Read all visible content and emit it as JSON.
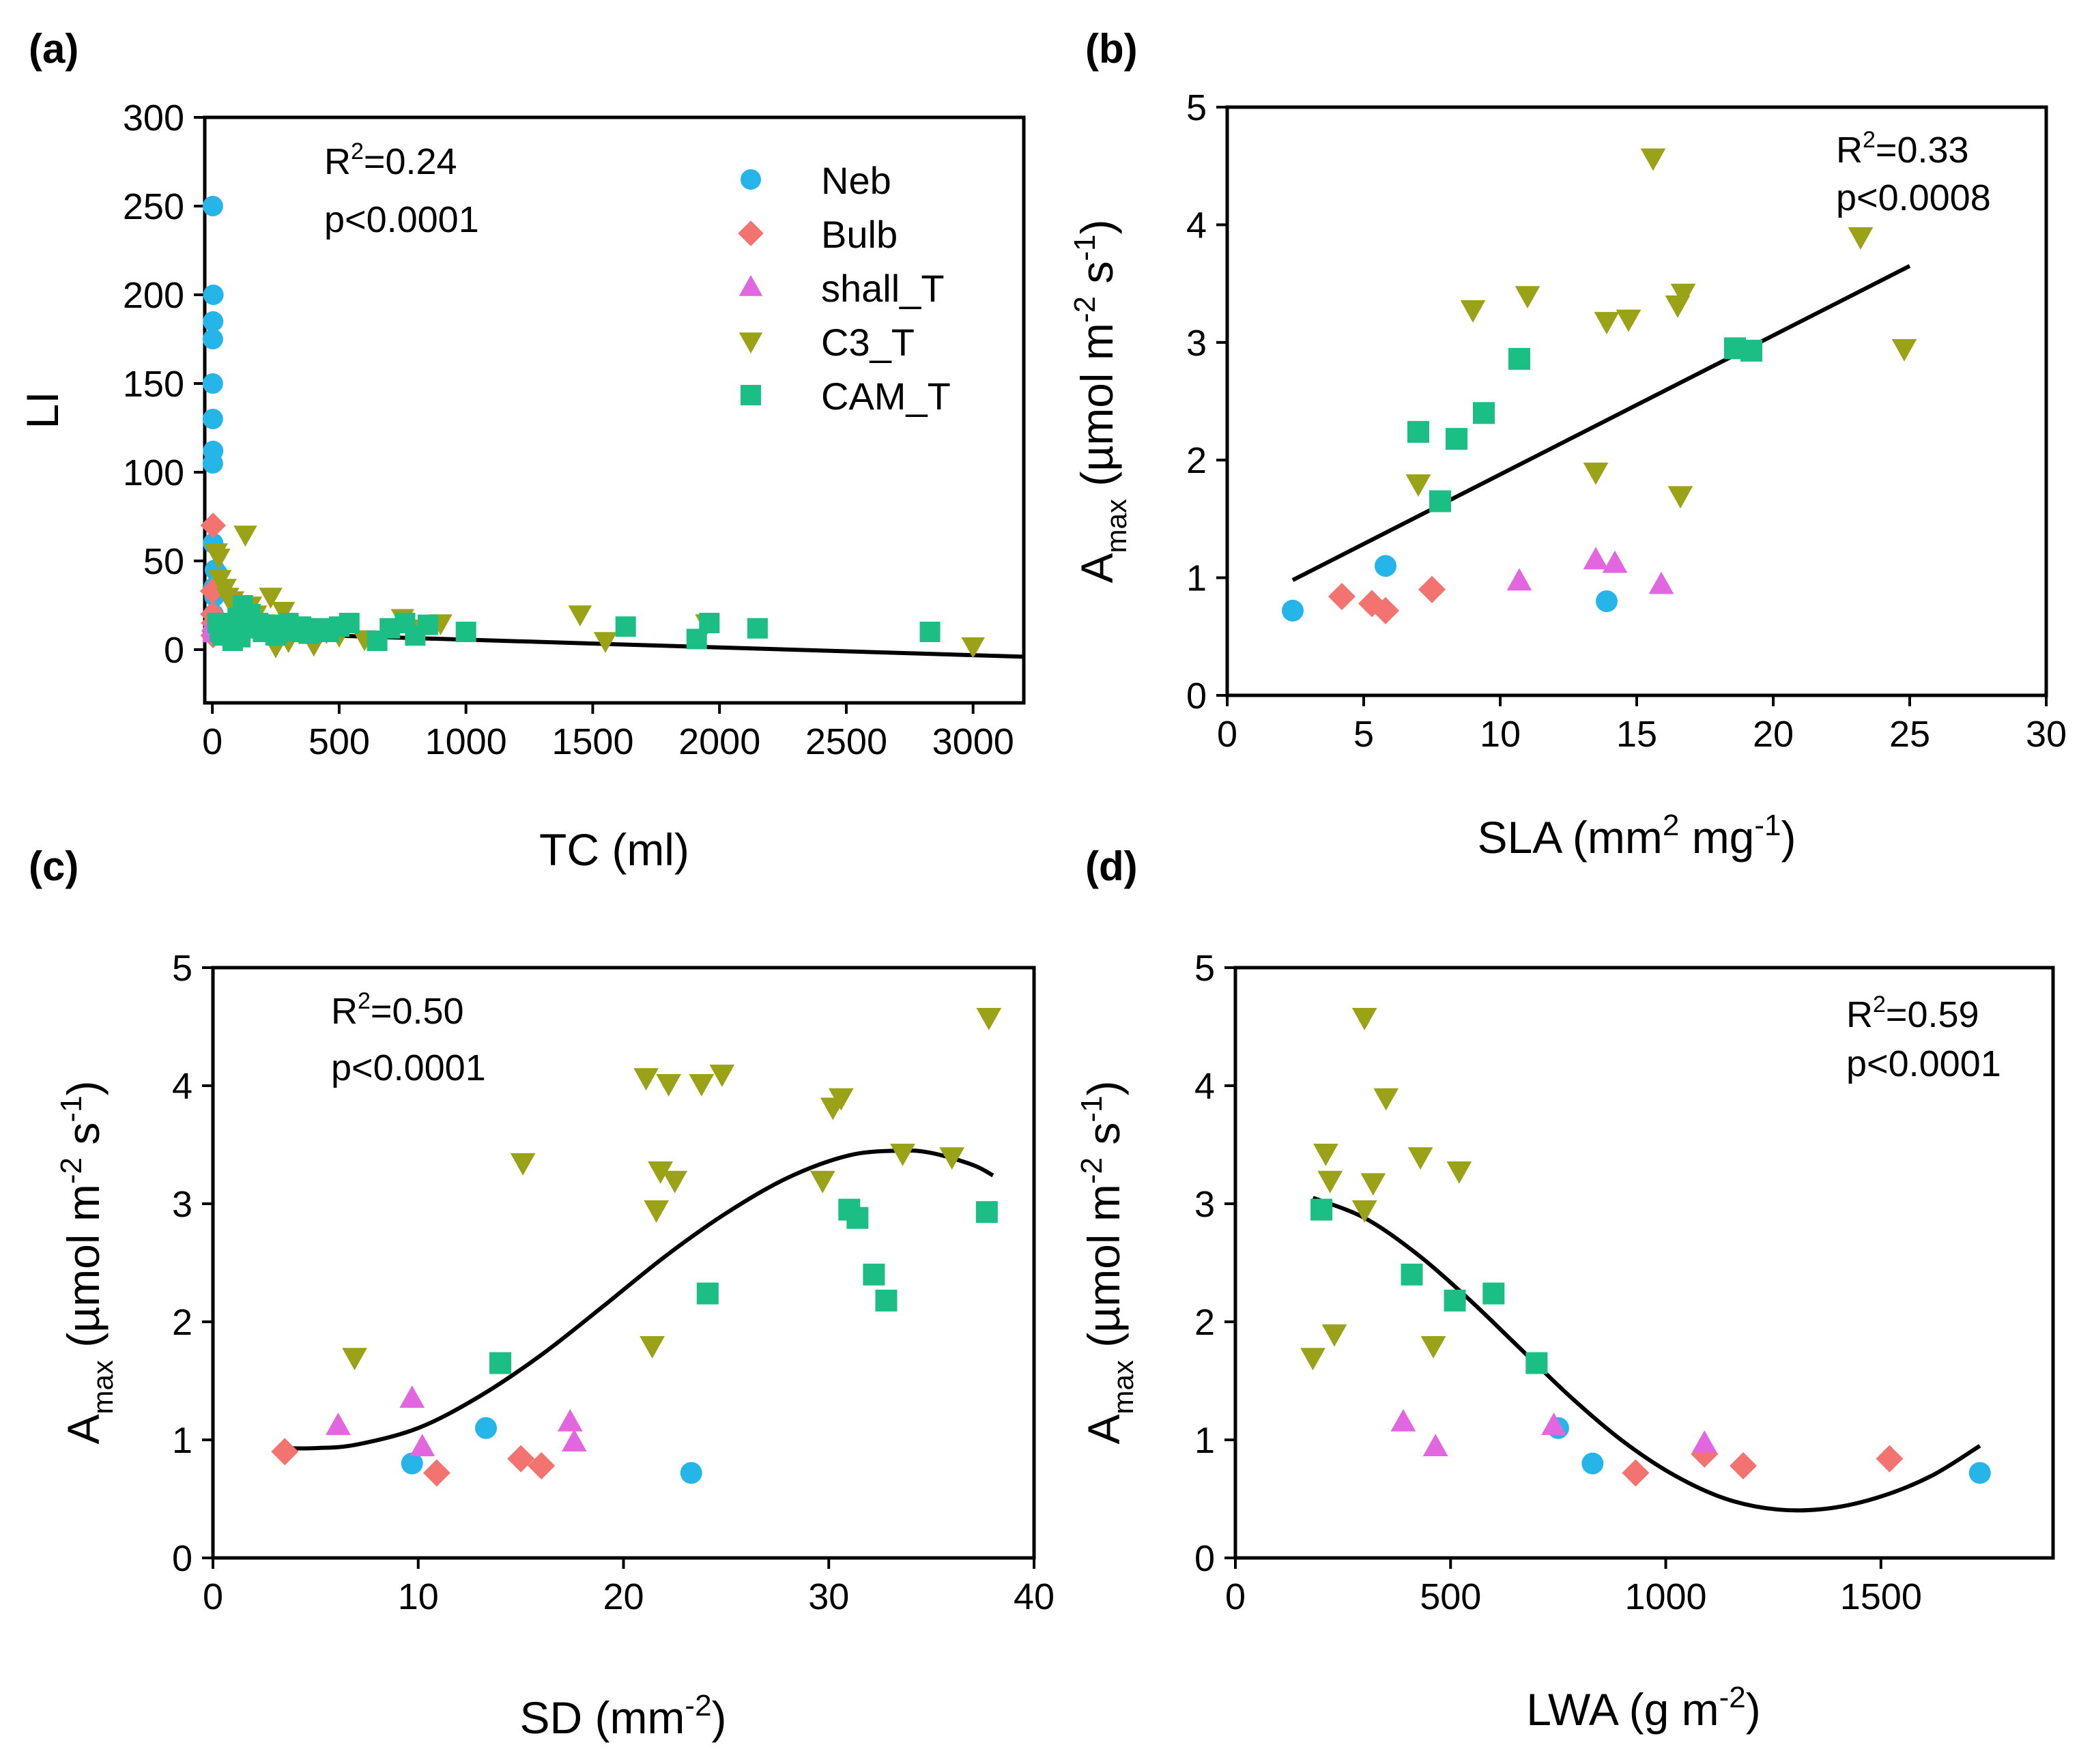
{
  "chart_data": [
    {
      "panel": "(a)",
      "type": "scatter",
      "xlabel": "TC (ml)",
      "ylabel": "LI",
      "xlim": [
        -30,
        3200
      ],
      "ylim": [
        -30,
        300
      ],
      "xticks": [
        0,
        500,
        1000,
        1500,
        2000,
        2500,
        3000
      ],
      "yticks": [
        0,
        50,
        100,
        150,
        200,
        250,
        300
      ],
      "stats": [
        "R2=0.24",
        "p<0.0001"
      ],
      "legend": [
        "Neb",
        "Bulb",
        "shall_T",
        "C3_T",
        "CAM_T"
      ],
      "fit": {
        "kind": "linear",
        "x": [
          0,
          3200
        ],
        "y": [
          10,
          -4
        ]
      },
      "series": [
        {
          "name": "Neb",
          "points": [
            [
              2,
              250
            ],
            [
              4,
              200
            ],
            [
              3,
              185
            ],
            [
              2,
              175
            ],
            [
              2,
              150
            ],
            [
              2,
              130
            ],
            [
              3,
              112
            ],
            [
              2,
              105
            ],
            [
              3,
              60
            ],
            [
              10,
              45
            ],
            [
              20,
              43
            ],
            [
              5,
              35
            ],
            [
              8,
              30
            ],
            [
              5,
              20
            ]
          ]
        },
        {
          "name": "Bulb",
          "points": [
            [
              3,
              70
            ],
            [
              1,
              33
            ],
            [
              2,
              20
            ],
            [
              5,
              15
            ],
            [
              3,
              8
            ]
          ]
        },
        {
          "name": "shall_T",
          "points": [
            [
              3,
              12
            ],
            [
              6,
              9
            ],
            [
              2,
              15
            ],
            [
              8,
              10
            ]
          ]
        },
        {
          "name": "C3_T",
          "points": [
            [
              15,
              55
            ],
            [
              25,
              52
            ],
            [
              30,
              40
            ],
            [
              50,
              35
            ],
            [
              60,
              30
            ],
            [
              80,
              28
            ],
            [
              100,
              22
            ],
            [
              120,
              18
            ],
            [
              130,
              65
            ],
            [
              150,
              25
            ],
            [
              170,
              20
            ],
            [
              200,
              15
            ],
            [
              230,
              30
            ],
            [
              250,
              2
            ],
            [
              280,
              22
            ],
            [
              300,
              5
            ],
            [
              350,
              12
            ],
            [
              400,
              3
            ],
            [
              450,
              10
            ],
            [
              500,
              8
            ],
            [
              600,
              6
            ],
            [
              750,
              18
            ],
            [
              820,
              12
            ],
            [
              900,
              15
            ],
            [
              1450,
              20
            ],
            [
              1550,
              5
            ],
            [
              1950,
              15
            ],
            [
              3000,
              2
            ]
          ]
        },
        {
          "name": "CAM_T",
          "points": [
            [
              20,
              15
            ],
            [
              30,
              10
            ],
            [
              40,
              8
            ],
            [
              60,
              12
            ],
            [
              80,
              5
            ],
            [
              100,
              18
            ],
            [
              110,
              7
            ],
            [
              120,
              25
            ],
            [
              140,
              12
            ],
            [
              150,
              20
            ],
            [
              180,
              15
            ],
            [
              200,
              10
            ],
            [
              220,
              14
            ],
            [
              250,
              8
            ],
            [
              280,
              12
            ],
            [
              300,
              15
            ],
            [
              320,
              10
            ],
            [
              350,
              13
            ],
            [
              380,
              9
            ],
            [
              420,
              12
            ],
            [
              460,
              10
            ],
            [
              500,
              13
            ],
            [
              540,
              15
            ],
            [
              650,
              5
            ],
            [
              700,
              12
            ],
            [
              760,
              15
            ],
            [
              800,
              8
            ],
            [
              850,
              14
            ],
            [
              1000,
              10
            ],
            [
              1630,
              13
            ],
            [
              1910,
              6
            ],
            [
              1960,
              15
            ],
            [
              2150,
              12
            ],
            [
              2830,
              10
            ]
          ]
        }
      ]
    },
    {
      "panel": "(b)",
      "type": "scatter",
      "xlabel": "SLA (mm2 mg-1)",
      "ylabel": "Amax (µmol m-2 s-1)",
      "xlim": [
        0,
        30
      ],
      "ylim": [
        0,
        5
      ],
      "xticks": [
        0,
        5,
        10,
        15,
        20,
        25,
        30
      ],
      "yticks": [
        0,
        1,
        2,
        3,
        4,
        5
      ],
      "stats": [
        "R2=0.33",
        "p<0.0008"
      ],
      "fit": {
        "kind": "linear",
        "x": [
          2.4,
          25.0
        ],
        "y": [
          0.98,
          3.65
        ]
      },
      "series": [
        {
          "name": "Neb",
          "points": [
            [
              2.4,
              0.72
            ],
            [
              5.8,
              1.1
            ],
            [
              13.9,
              0.8
            ]
          ]
        },
        {
          "name": "Bulb",
          "points": [
            [
              4.2,
              0.84
            ],
            [
              5.3,
              0.78
            ],
            [
              5.8,
              0.72
            ],
            [
              7.5,
              0.9
            ]
          ]
        },
        {
          "name": "shall_T",
          "points": [
            [
              10.7,
              0.97
            ],
            [
              13.5,
              1.15
            ],
            [
              14.2,
              1.12
            ],
            [
              15.9,
              0.94
            ]
          ]
        },
        {
          "name": "C3_T",
          "points": [
            [
              7.0,
              1.8
            ],
            [
              9.0,
              3.28
            ],
            [
              11.0,
              3.4
            ],
            [
              13.5,
              1.9
            ],
            [
              13.9,
              3.18
            ],
            [
              14.7,
              3.2
            ],
            [
              15.6,
              4.57
            ],
            [
              16.5,
              3.32
            ],
            [
              16.7,
              3.42
            ],
            [
              16.6,
              1.7
            ],
            [
              23.2,
              3.9
            ],
            [
              24.8,
              2.95
            ]
          ]
        },
        {
          "name": "CAM_T",
          "points": [
            [
              7.0,
              2.24
            ],
            [
              7.8,
              1.65
            ],
            [
              8.4,
              2.18
            ],
            [
              9.4,
              2.4
            ],
            [
              10.7,
              2.86
            ],
            [
              18.6,
              2.95
            ],
            [
              19.2,
              2.93
            ]
          ]
        }
      ]
    },
    {
      "panel": "(c)",
      "type": "scatter",
      "xlabel": "SD (mm-2)",
      "ylabel": "Amax (µmol m-2 s-1)",
      "xlim": [
        0,
        40
      ],
      "ylim": [
        0,
        5
      ],
      "xticks": [
        0,
        10,
        20,
        30,
        40
      ],
      "yticks": [
        0,
        1,
        2,
        3,
        4,
        5
      ],
      "stats": [
        "R2=0.50",
        "p<0.0001"
      ],
      "fit": {
        "kind": "curve",
        "x": [
          3.5,
          5,
          7,
          10,
          13,
          16,
          19,
          22,
          25,
          28,
          31,
          33.5,
          35,
          37,
          38
        ],
        "y": [
          0.93,
          0.93,
          0.96,
          1.1,
          1.37,
          1.72,
          2.13,
          2.55,
          2.92,
          3.22,
          3.41,
          3.45,
          3.43,
          3.33,
          3.24
        ]
      },
      "series": [
        {
          "name": "Neb",
          "points": [
            [
              9.7,
              0.8
            ],
            [
              13.3,
              1.1
            ],
            [
              23.3,
              0.72
            ]
          ]
        },
        {
          "name": "Bulb",
          "points": [
            [
              3.5,
              0.9
            ],
            [
              10.9,
              0.72
            ],
            [
              15.0,
              0.84
            ],
            [
              16.0,
              0.78
            ]
          ]
        },
        {
          "name": "shall_T",
          "points": [
            [
              6.1,
              1.12
            ],
            [
              9.7,
              1.35
            ],
            [
              10.2,
              0.94
            ],
            [
              17.4,
              1.15
            ],
            [
              17.6,
              0.98
            ]
          ]
        },
        {
          "name": "C3_T",
          "points": [
            [
              6.9,
              1.7
            ],
            [
              15.1,
              3.35
            ],
            [
              21.1,
              4.07
            ],
            [
              21.4,
              1.8
            ],
            [
              21.6,
              2.95
            ],
            [
              21.8,
              3.28
            ],
            [
              22.2,
              4.02
            ],
            [
              22.5,
              3.2
            ],
            [
              23.8,
              4.02
            ],
            [
              24.8,
              4.1
            ],
            [
              29.7,
              3.2
            ],
            [
              30.2,
              3.82
            ],
            [
              30.6,
              3.9
            ],
            [
              33.6,
              3.43
            ],
            [
              36.0,
              3.4
            ],
            [
              37.8,
              4.58
            ]
          ]
        },
        {
          "name": "CAM_T",
          "points": [
            [
              14.0,
              1.65
            ],
            [
              24.1,
              2.24
            ],
            [
              31.0,
              2.95
            ],
            [
              31.4,
              2.88
            ],
            [
              32.2,
              2.4
            ],
            [
              32.8,
              2.18
            ],
            [
              37.7,
              2.93
            ]
          ]
        }
      ]
    },
    {
      "panel": "(d)",
      "type": "scatter",
      "xlabel": "LWA (g m-2)",
      "ylabel": "Amax (µmol m-2 s-1)",
      "xlim": [
        0,
        1900
      ],
      "ylim": [
        0,
        5
      ],
      "xticks": [
        0,
        500,
        1000,
        1500
      ],
      "yticks": [
        0,
        1,
        2,
        3,
        4,
        5
      ],
      "stats": [
        "R2=0.59",
        "p<0.0001"
      ],
      "fit": {
        "kind": "curve",
        "x": [
          180,
          300,
          420,
          540,
          660,
          780,
          900,
          1020,
          1140,
          1260,
          1380,
          1500,
          1620,
          1730
        ],
        "y": [
          3.05,
          2.88,
          2.58,
          2.2,
          1.78,
          1.36,
          0.99,
          0.7,
          0.5,
          0.41,
          0.42,
          0.52,
          0.7,
          0.95
        ]
      },
      "series": [
        {
          "name": "Neb",
          "points": [
            [
              750,
              1.1
            ],
            [
              830,
              0.8
            ],
            [
              1730,
              0.72
            ]
          ]
        },
        {
          "name": "Bulb",
          "points": [
            [
              930,
              0.72
            ],
            [
              1090,
              0.88
            ],
            [
              1180,
              0.78
            ],
            [
              1520,
              0.84
            ]
          ]
        },
        {
          "name": "shall_T",
          "points": [
            [
              390,
              1.15
            ],
            [
              465,
              0.94
            ],
            [
              740,
              1.12
            ],
            [
              1090,
              0.97
            ]
          ]
        },
        {
          "name": "C3_T",
          "points": [
            [
              180,
              1.7
            ],
            [
              210,
              3.43
            ],
            [
              220,
              3.2
            ],
            [
              230,
              1.9
            ],
            [
              300,
              4.58
            ],
            [
              300,
              2.95
            ],
            [
              320,
              3.18
            ],
            [
              350,
              3.9
            ],
            [
              430,
              3.4
            ],
            [
              460,
              1.8
            ],
            [
              520,
              3.28
            ]
          ]
        },
        {
          "name": "CAM_T",
          "points": [
            [
              200,
              2.95
            ],
            [
              410,
              2.4
            ],
            [
              510,
              2.18
            ],
            [
              600,
              2.24
            ],
            [
              700,
              1.65
            ]
          ]
        }
      ]
    }
  ],
  "panel_texts": {
    "a": {
      "label": "(a)",
      "xlabel": "TC (ml)",
      "ylabel": "LI",
      "r2_base": "R",
      "r2_sup": "2",
      "r2_val": "=0.24",
      "p": "p<0.0001"
    },
    "b": {
      "label": "(b)",
      "x_pre": "SLA (mm",
      "x_sup1": "2",
      "x_mid": " mg",
      "x_sup2": "-1",
      "x_post": ")",
      "y_a": "A",
      "y_max": "max",
      "y_mid": " (µmol m",
      "y_sup1": "-2",
      "y_s": " s",
      "y_sup2": "-1",
      "y_end": ")",
      "r2_base": "R",
      "r2_sup": "2",
      "r2_val": "=0.33",
      "p": "p<0.0008"
    },
    "c": {
      "label": "(c)",
      "x_pre": "SD (mm",
      "x_sup": "-2",
      "x_post": ")",
      "y_a": "A",
      "y_max": "max",
      "y_mid": " (µmol m",
      "y_sup1": "-2",
      "y_s": " s",
      "y_sup2": "-1",
      "y_end": ")",
      "r2_base": "R",
      "r2_sup": "2",
      "r2_val": "=0.50",
      "p": "p<0.0001"
    },
    "d": {
      "label": "(d)",
      "x_pre": "LWA (g m",
      "x_sup": "-2",
      "x_post": ")",
      "y_a": "A",
      "y_max": "max",
      "y_mid": " (µmol m",
      "y_sup1": "-2",
      "y_s": " s",
      "y_sup2": "-1",
      "y_end": ")",
      "r2_base": "R",
      "r2_sup": "2",
      "r2_val": "=0.59",
      "p": "p<0.0001"
    }
  },
  "legend_labels": [
    "Neb",
    "Bulb",
    "shall_T",
    "C3_T",
    "CAM_T"
  ],
  "colors": {
    "Neb": "#26b5e8",
    "Bulb": "#f2736f",
    "shall_T": "#e266e0",
    "C3_T": "#9aa318",
    "CAM_T": "#1bbf86",
    "axis": "#000000",
    "fit": "#000000"
  },
  "marker_shapes": {
    "Neb": "circle",
    "Bulb": "diamond",
    "shall_T": "triangle-up",
    "C3_T": "triangle-down",
    "CAM_T": "square"
  }
}
